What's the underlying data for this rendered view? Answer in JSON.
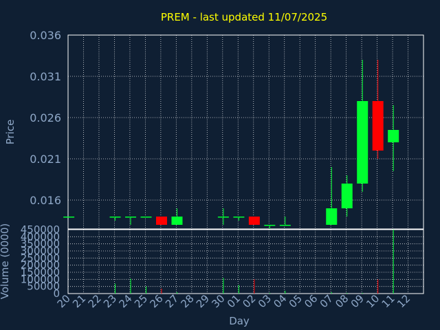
{
  "colors": {
    "background": "#0f1f33",
    "up": "#00ff30",
    "down": "#ff0000",
    "grid": "#ffffff",
    "frame": "#ffffff",
    "text": "#8fa8c8",
    "title": "#ffff00"
  },
  "chart_data": [
    {
      "type": "candlestick",
      "title": "PREM - last updated 11/07/2025",
      "xlabel": "Day",
      "ylabel": "Price",
      "ylim": [
        0.0125,
        0.036
      ],
      "yticks": [
        "0.036",
        "0.031",
        "0.026",
        "0.021",
        "0.016"
      ],
      "ytick_values": [
        0.036,
        0.031,
        0.026,
        0.021,
        0.016
      ],
      "grid": true,
      "x": [
        "20",
        "21",
        "22",
        "23",
        "24",
        "25",
        "26",
        "27",
        "28",
        "29",
        "30",
        "01",
        "02",
        "03",
        "04",
        "05",
        "06",
        "07",
        "08",
        "09",
        "10",
        "11",
        "12"
      ],
      "candles": [
        {
          "x": "20",
          "open": 0.014,
          "high": 0.014,
          "low": 0.014,
          "close": 0.014
        },
        {
          "x": "23",
          "open": 0.014,
          "high": 0.014,
          "low": 0.0135,
          "close": 0.014
        },
        {
          "x": "24",
          "open": 0.014,
          "high": 0.014,
          "low": 0.013,
          "close": 0.014
        },
        {
          "x": "25",
          "open": 0.014,
          "high": 0.014,
          "low": 0.014,
          "close": 0.014
        },
        {
          "x": "26",
          "open": 0.014,
          "high": 0.014,
          "low": 0.013,
          "close": 0.013
        },
        {
          "x": "27",
          "open": 0.013,
          "high": 0.015,
          "low": 0.013,
          "close": 0.014
        },
        {
          "x": "30",
          "open": 0.014,
          "high": 0.015,
          "low": 0.013,
          "close": 0.014
        },
        {
          "x": "01",
          "open": 0.014,
          "high": 0.014,
          "low": 0.0135,
          "close": 0.014
        },
        {
          "x": "02",
          "open": 0.014,
          "high": 0.014,
          "low": 0.013,
          "close": 0.013
        },
        {
          "x": "03",
          "open": 0.013,
          "high": 0.013,
          "low": 0.0125,
          "close": 0.013
        },
        {
          "x": "04",
          "open": 0.013,
          "high": 0.014,
          "low": 0.013,
          "close": 0.013
        },
        {
          "x": "07",
          "open": 0.013,
          "high": 0.02,
          "low": 0.013,
          "close": 0.015
        },
        {
          "x": "08",
          "open": 0.015,
          "high": 0.019,
          "low": 0.014,
          "close": 0.018
        },
        {
          "x": "09",
          "open": 0.018,
          "high": 0.033,
          "low": 0.017,
          "close": 0.028
        },
        {
          "x": "10",
          "open": 0.028,
          "high": 0.033,
          "low": 0.021,
          "close": 0.022
        },
        {
          "x": "11",
          "open": 0.023,
          "high": 0.0275,
          "low": 0.0195,
          "close": 0.0245
        }
      ]
    },
    {
      "type": "bar",
      "ylabel": "Volume (0000)",
      "xlabel": "Day",
      "ylim": [
        0,
        450000
      ],
      "yticks": [
        "450000",
        "400000",
        "350000",
        "300000",
        "250000",
        "200000",
        "150000",
        "100000",
        "50000",
        "0"
      ],
      "ytick_values": [
        450000,
        400000,
        350000,
        300000,
        250000,
        200000,
        150000,
        100000,
        50000,
        0
      ],
      "grid": true,
      "categories": [
        "20",
        "21",
        "22",
        "23",
        "24",
        "25",
        "26",
        "27",
        "28",
        "29",
        "30",
        "01",
        "02",
        "03",
        "04",
        "05",
        "06",
        "07",
        "08",
        "09",
        "10",
        "11",
        "12"
      ],
      "bars": [
        {
          "x": "20",
          "value": 0,
          "dir": "up"
        },
        {
          "x": "23",
          "value": 70000,
          "dir": "up"
        },
        {
          "x": "24",
          "value": 105000,
          "dir": "up"
        },
        {
          "x": "25",
          "value": 50000,
          "dir": "up"
        },
        {
          "x": "26",
          "value": 35000,
          "dir": "down"
        },
        {
          "x": "27",
          "value": 10000,
          "dir": "up"
        },
        {
          "x": "30",
          "value": 110000,
          "dir": "up"
        },
        {
          "x": "01",
          "value": 60000,
          "dir": "up"
        },
        {
          "x": "02",
          "value": 100000,
          "dir": "down"
        },
        {
          "x": "03",
          "value": 5000,
          "dir": "up"
        },
        {
          "x": "04",
          "value": 20000,
          "dir": "up"
        },
        {
          "x": "07",
          "value": 10000,
          "dir": "up"
        },
        {
          "x": "08",
          "value": 5000,
          "dir": "up"
        },
        {
          "x": "09",
          "value": 5000,
          "dir": "up"
        },
        {
          "x": "10",
          "value": 100000,
          "dir": "down"
        },
        {
          "x": "11",
          "value": 450000,
          "dir": "up"
        }
      ]
    }
  ]
}
